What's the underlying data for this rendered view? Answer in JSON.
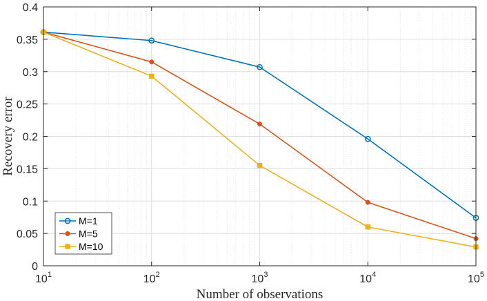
{
  "chart_data": {
    "type": "line",
    "title": "",
    "xlabel": "Number of observations",
    "ylabel": "Recovery error",
    "xscale": "log",
    "x": [
      10,
      100,
      1000,
      10000,
      100000
    ],
    "xlim": [
      10,
      100000
    ],
    "ylim": [
      0,
      0.4
    ],
    "x_ticks": [
      {
        "base": "10",
        "exp": "1",
        "value": 10
      },
      {
        "base": "10",
        "exp": "2",
        "value": 100
      },
      {
        "base": "10",
        "exp": "3",
        "value": 1000
      },
      {
        "base": "10",
        "exp": "4",
        "value": 10000
      },
      {
        "base": "10",
        "exp": "5",
        "value": 100000
      }
    ],
    "y_ticks": [
      {
        "label": "0",
        "value": 0
      },
      {
        "label": "0.05",
        "value": 0.05
      },
      {
        "label": "0.1",
        "value": 0.1
      },
      {
        "label": "0.15",
        "value": 0.15
      },
      {
        "label": "0.2",
        "value": 0.2
      },
      {
        "label": "0.25",
        "value": 0.25
      },
      {
        "label": "0.3",
        "value": 0.3
      },
      {
        "label": "0.35",
        "value": 0.35
      },
      {
        "label": "0.4",
        "value": 0.4
      }
    ],
    "grid": true,
    "legend_position": "bottom-left",
    "series": [
      {
        "name": "M=1",
        "color": "#0072BD",
        "marker": "circle",
        "values": [
          0.361,
          0.348,
          0.307,
          0.196,
          0.074
        ]
      },
      {
        "name": "M=5",
        "color": "#D95319",
        "marker": "dot",
        "values": [
          0.361,
          0.315,
          0.219,
          0.098,
          0.042
        ]
      },
      {
        "name": "M=10",
        "color": "#EDB120",
        "marker": "square",
        "values": [
          0.361,
          0.293,
          0.155,
          0.06,
          0.029
        ]
      }
    ]
  }
}
